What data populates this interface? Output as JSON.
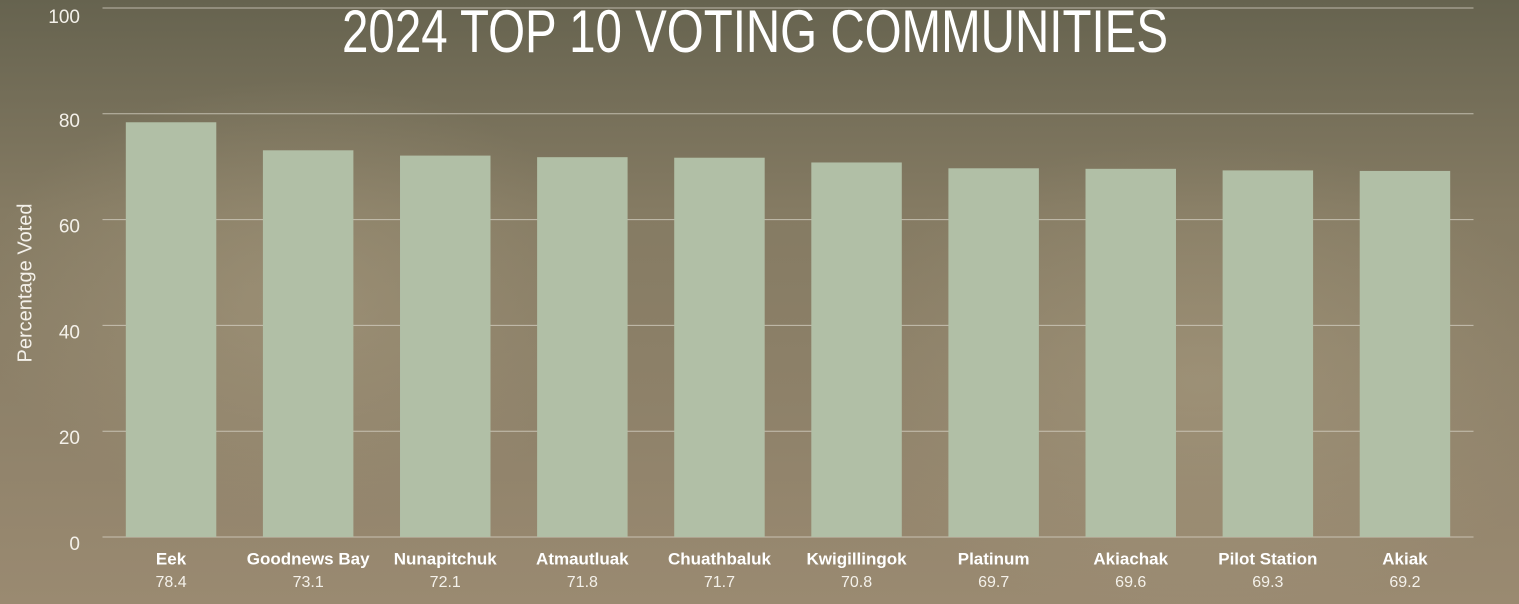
{
  "chart_data": {
    "type": "bar",
    "title": "2024 TOP 10 VOTING COMMUNITIES",
    "y_label": "Percentage Voted",
    "categories": [
      "Eek",
      "Goodnews Bay",
      "Nunapitchuk",
      "Atmautluak",
      "Chuathbaluk",
      "Kwigillingok",
      "Platinum",
      "Akiachak",
      "Pilot Station",
      "Akiak"
    ],
    "values": [
      78.4,
      73.1,
      72.1,
      71.8,
      71.7,
      70.8,
      69.7,
      69.6,
      69.3,
      69.2
    ],
    "color": "#b1bfa6",
    "ylim": [
      0,
      100
    ],
    "yticks": [
      0,
      20,
      40,
      60,
      80,
      100
    ],
    "grid": true
  }
}
